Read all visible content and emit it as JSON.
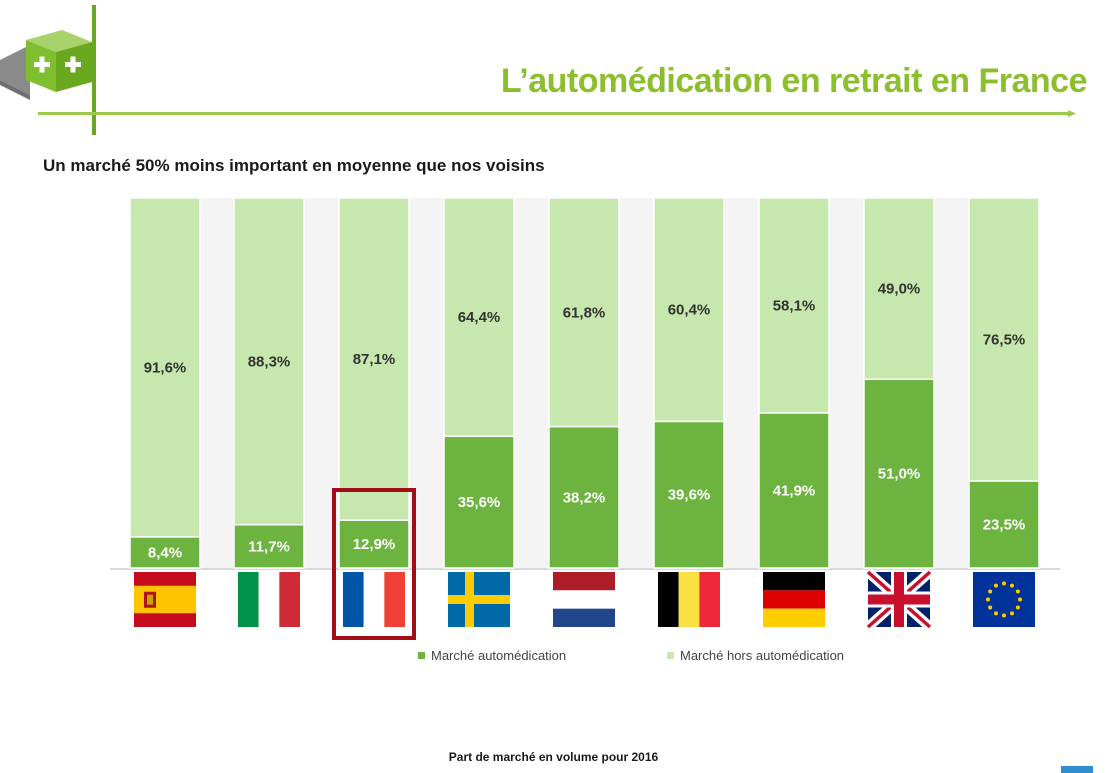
{
  "header": {
    "title": "L’automédication en retrait en France"
  },
  "subtitle": "Un marché 50% moins important en moyenne que nos voisins",
  "footer": "Part de marché en volume pour 2016",
  "colors": {
    "self": "#6db33f",
    "nonself": "#c6e7ad",
    "accent": "#9cc84b",
    "highlight": "#a30d15"
  },
  "chart_data": {
    "type": "bar",
    "stacked": true,
    "categories": [
      "Espagne",
      "Italie",
      "France",
      "Suède",
      "Pays-Bas",
      "Belgique",
      "Allemagne",
      "Royaume-Uni",
      "Union européenne"
    ],
    "category_icons": [
      "spain-flag-icon",
      "italy-flag-icon",
      "france-flag-icon",
      "sweden-flag-icon",
      "netherlands-flag-icon",
      "belgium-flag-icon",
      "germany-flag-icon",
      "uk-flag-icon",
      "eu-flag-icon"
    ],
    "series": [
      {
        "name": "Marché automédication",
        "values": [
          8.4,
          11.7,
          12.9,
          35.6,
          38.2,
          39.6,
          41.9,
          51.0,
          23.5
        ],
        "labels": [
          "8,4%",
          "11,7%",
          "12,9%",
          "35,6%",
          "38,2%",
          "39,6%",
          "41,9%",
          "51,0%",
          "23,5%"
        ]
      },
      {
        "name": "Marché hors automédication",
        "values": [
          91.6,
          88.3,
          87.1,
          64.4,
          61.8,
          60.4,
          58.1,
          49.0,
          76.5
        ],
        "labels": [
          "91,6%",
          "88,3%",
          "87,1%",
          "64,4%",
          "61,8%",
          "60,4%",
          "58,1%",
          "49,0%",
          "76,5%"
        ]
      }
    ],
    "ylim": [
      0,
      100
    ],
    "highlighted_category": "France",
    "legend": "bottom"
  }
}
